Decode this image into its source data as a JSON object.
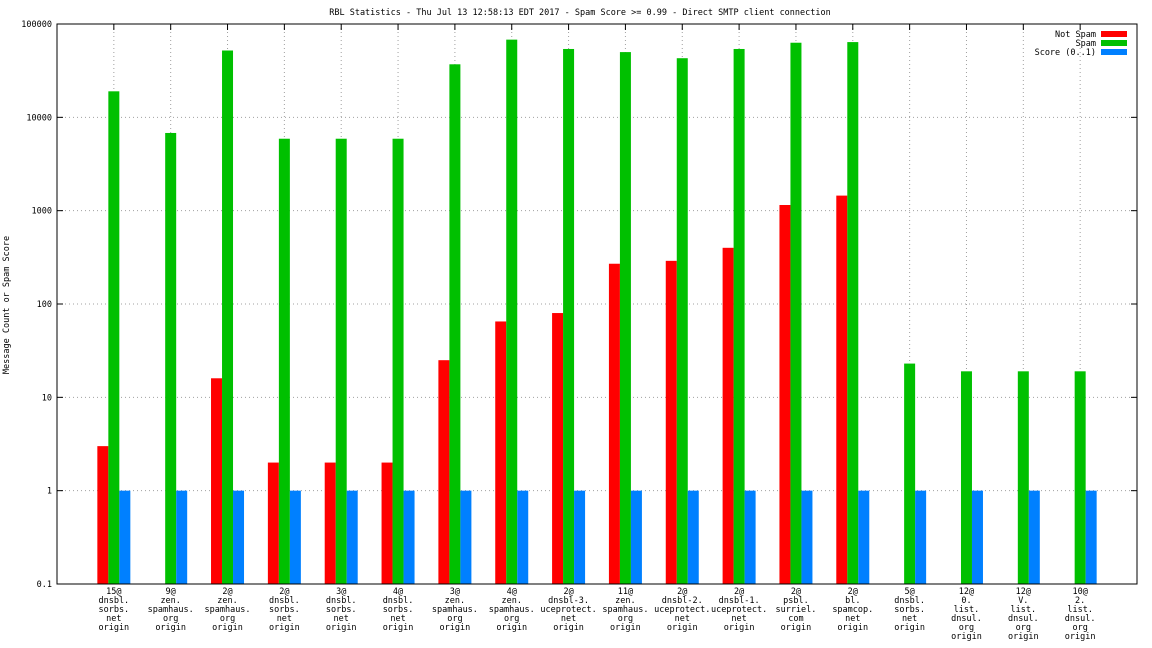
{
  "chart_data": {
    "type": "bar",
    "title": "RBL Statistics - Thu Jul 13 12:58:13 EDT 2017 - Spam Score >= 0.99 - Direct SMTP client connection",
    "xlabel": "",
    "ylabel": "Message Count or Spam Score",
    "yscale": "log",
    "ylim": [
      0.1,
      100000
    ],
    "yticks": [
      "0.1",
      "1",
      "10",
      "100",
      "1000",
      "10000",
      "100000"
    ],
    "grid": true,
    "legend_position": "top-right",
    "categories": [
      "15@ dnsbl. sorbs. net origin",
      "9@ zen. spamhaus. org origin",
      "2@ zen. spamhaus. org origin",
      "2@ dnsbl. sorbs. net origin",
      "3@ dnsbl. sorbs. net origin",
      "4@ dnsbl. sorbs. net origin",
      "3@ zen. spamhaus. org origin",
      "4@ zen. spamhaus. org origin",
      "2@ dnsbl-3. uceprotect. net origin",
      "11@ zen. spamhaus. org origin",
      "2@ dnsbl-2. uceprotect. net origin",
      "2@ dnsbl-1. uceprotect. net origin",
      "2@ psbl. surriel. com origin",
      "2@ bl. spamcop. net origin",
      "5@ dnsbl. sorbs. net origin",
      "12@ 0. list. dnsul. org origin",
      "12@ V. list. dnsul. org origin",
      "10@ 2. list. dnsul. org origin"
    ],
    "category_lines": [
      [
        "15@",
        "dnsbl.",
        "sorbs.",
        "net",
        "origin"
      ],
      [
        "9@",
        "zen.",
        "spamhaus.",
        "org",
        "origin"
      ],
      [
        "2@",
        "zen.",
        "spamhaus.",
        "org",
        "origin"
      ],
      [
        "2@",
        "dnsbl.",
        "sorbs.",
        "net",
        "origin"
      ],
      [
        "3@",
        "dnsbl.",
        "sorbs.",
        "net",
        "origin"
      ],
      [
        "4@",
        "dnsbl.",
        "sorbs.",
        "net",
        "origin"
      ],
      [
        "3@",
        "zen.",
        "spamhaus.",
        "org",
        "origin"
      ],
      [
        "4@",
        "zen.",
        "spamhaus.",
        "org",
        "origin"
      ],
      [
        "2@",
        "dnsbl-3.",
        "uceprotect.",
        "net",
        "origin"
      ],
      [
        "11@",
        "zen.",
        "spamhaus.",
        "org",
        "origin"
      ],
      [
        "2@",
        "dnsbl-2.",
        "uceprotect.",
        "net",
        "origin"
      ],
      [
        "2@",
        "dnsbl-1.",
        "uceprotect.",
        "net",
        "origin"
      ],
      [
        "2@",
        "psbl.",
        "surriel.",
        "com",
        "origin"
      ],
      [
        "2@",
        "bl.",
        "spamcop.",
        "net",
        "origin"
      ],
      [
        "5@",
        "dnsbl.",
        "sorbs.",
        "net",
        "origin"
      ],
      [
        "12@",
        "0.",
        "list.",
        "dnsul.",
        "org",
        "origin"
      ],
      [
        "12@",
        "V.",
        "list.",
        "dnsul.",
        "org",
        "origin"
      ],
      [
        "10@",
        "2.",
        "list.",
        "dnsul.",
        "org",
        "origin"
      ]
    ],
    "series": [
      {
        "name": "Not Spam",
        "color": "#ff0000",
        "values": [
          3,
          null,
          16,
          2,
          2,
          2,
          25,
          65,
          80,
          270,
          290,
          400,
          1150,
          1450,
          null,
          null,
          null,
          null
        ]
      },
      {
        "name": "Spam",
        "color": "#00c000",
        "values": [
          19000,
          6800,
          52000,
          5900,
          5900,
          5900,
          37000,
          68000,
          54000,
          50000,
          43000,
          54000,
          63000,
          64000,
          23,
          19,
          19,
          19
        ]
      },
      {
        "name": "Score (0..1)",
        "color": "#0080ff",
        "values": [
          1,
          1,
          1,
          1,
          1,
          1,
          1,
          1,
          1,
          1,
          1,
          1,
          1,
          1,
          1,
          1,
          1,
          1
        ]
      }
    ]
  }
}
